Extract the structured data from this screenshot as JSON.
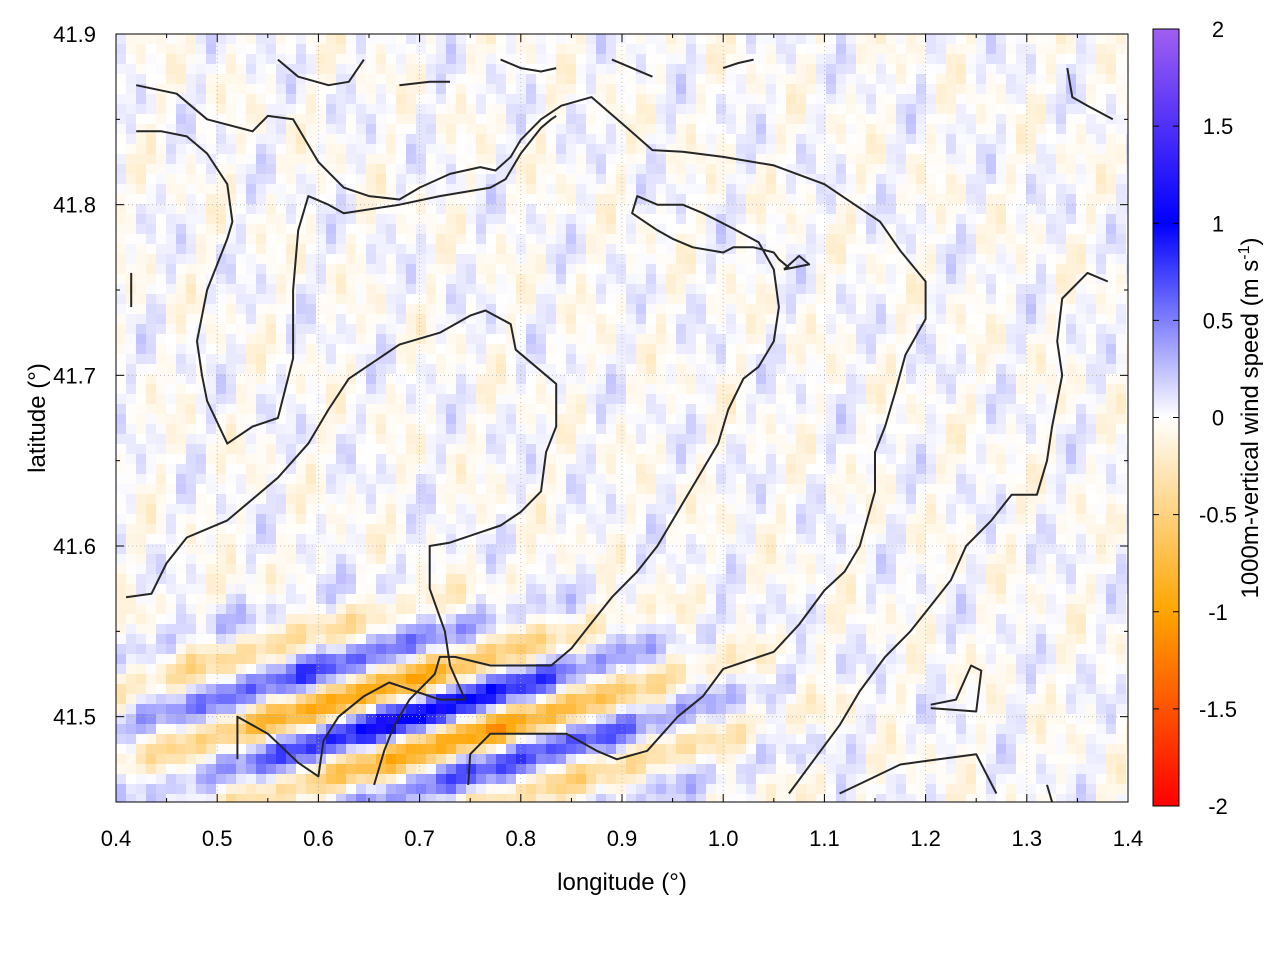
{
  "chart_data": {
    "type": "heatmap",
    "title": "",
    "xlabel": "longitude (°)",
    "ylabel": "latitude (°)",
    "colorbar_label": "1000m-vertical wind speed (m s",
    "colorbar_label_sup": "-1",
    "colorbar_label_end": ")",
    "xlim": [
      0.4,
      1.4
    ],
    "ylim": [
      41.45,
      41.9
    ],
    "x_ticks": [
      0.4,
      0.5,
      0.6,
      0.7,
      0.8,
      0.9,
      1.0,
      1.1,
      1.2,
      1.3,
      1.4
    ],
    "x_tick_labels": [
      "0.4",
      "0.5",
      "0.6",
      "0.7",
      "0.8",
      "0.9",
      "1.0",
      "1.1",
      "1.2",
      "1.3",
      "1.4"
    ],
    "y_ticks": [
      41.5,
      41.6,
      41.7,
      41.8,
      41.9
    ],
    "y_tick_labels": [
      "41.5",
      "41.6",
      "41.7",
      "41.8",
      "41.9"
    ],
    "clim": [
      -2,
      2
    ],
    "cbar_ticks": [
      2,
      1.5,
      1,
      0.5,
      0,
      -0.5,
      -1,
      -1.5,
      -2
    ],
    "cbar_tick_labels": [
      "2",
      "1.5",
      "1",
      "0.5",
      "0",
      "-0.5",
      "-1",
      "-1.5",
      "-2"
    ],
    "grid": true,
    "colormap": [
      {
        "v": -2.0,
        "color": "#ff0000"
      },
      {
        "v": -1.0,
        "color": "#ffa500"
      },
      {
        "v": 0.0,
        "color": "#ffffff"
      },
      {
        "v": 1.0,
        "color": "#0000ff"
      },
      {
        "v": 2.0,
        "color": "#a060f0"
      }
    ],
    "contours": [
      [
        [
          0.42,
          41.87
        ],
        [
          0.46,
          41.865
        ],
        [
          0.49,
          41.85
        ],
        [
          0.535,
          41.843
        ],
        [
          0.55,
          41.852
        ],
        [
          0.575,
          41.85
        ],
        [
          0.6,
          41.825
        ],
        [
          0.625,
          41.81
        ],
        [
          0.65,
          41.805
        ],
        [
          0.68,
          41.803
        ],
        [
          0.7,
          41.81
        ],
        [
          0.73,
          41.818
        ],
        [
          0.76,
          41.822
        ],
        [
          0.775,
          41.82
        ],
        [
          0.79,
          41.828
        ],
        [
          0.8,
          41.838
        ],
        [
          0.82,
          41.85
        ],
        [
          0.84,
          41.858
        ],
        [
          0.87,
          41.863
        ],
        [
          0.905,
          41.845
        ],
        [
          0.93,
          41.832
        ],
        [
          0.96,
          41.831
        ],
        [
          1.0,
          41.828
        ],
        [
          1.05,
          41.823
        ],
        [
          1.1,
          41.812
        ],
        [
          1.13,
          41.8
        ],
        [
          1.155,
          41.79
        ],
        [
          1.175,
          41.773
        ],
        [
          1.2,
          41.755
        ],
        [
          1.2,
          41.733
        ],
        [
          1.18,
          41.712
        ],
        [
          1.17,
          41.69
        ],
        [
          1.16,
          41.67
        ],
        [
          1.15,
          41.655
        ],
        [
          1.15,
          41.632
        ],
        [
          1.135,
          41.6
        ],
        [
          1.12,
          41.585
        ],
        [
          1.1,
          41.574
        ],
        [
          1.075,
          41.554
        ],
        [
          1.05,
          41.538
        ],
        [
          1.0,
          41.528
        ],
        [
          0.98,
          41.512
        ],
        [
          0.955,
          41.5
        ],
        [
          0.925,
          41.48
        ],
        [
          0.895,
          41.475
        ],
        [
          0.875,
          41.48
        ],
        [
          0.845,
          41.49
        ],
        [
          0.81,
          41.49
        ],
        [
          0.77,
          41.49
        ],
        [
          0.75,
          41.478
        ],
        [
          0.748,
          41.46
        ]
      ],
      [
        [
          0.42,
          41.843
        ],
        [
          0.445,
          41.843
        ],
        [
          0.47,
          41.84
        ],
        [
          0.49,
          41.83
        ],
        [
          0.51,
          41.812
        ],
        [
          0.515,
          41.79
        ],
        [
          0.51,
          41.78
        ],
        [
          0.49,
          41.75
        ],
        [
          0.48,
          41.72
        ],
        [
          0.485,
          41.7
        ],
        [
          0.49,
          41.685
        ],
        [
          0.51,
          41.66
        ],
        [
          0.535,
          41.67
        ],
        [
          0.56,
          41.675
        ],
        [
          0.575,
          41.71
        ],
        [
          0.575,
          41.75
        ],
        [
          0.58,
          41.785
        ],
        [
          0.59,
          41.805
        ],
        [
          0.61,
          41.8
        ],
        [
          0.625,
          41.795
        ],
        [
          0.68,
          41.8
        ],
        [
          0.72,
          41.805
        ],
        [
          0.77,
          41.81
        ],
        [
          0.785,
          41.815
        ],
        [
          0.8,
          41.83
        ],
        [
          0.82,
          41.845
        ],
        [
          0.83,
          41.85
        ],
        [
          0.835,
          41.852
        ]
      ],
      [
        [
          0.41,
          41.57
        ],
        [
          0.435,
          41.572
        ],
        [
          0.45,
          41.59
        ],
        [
          0.47,
          41.605
        ],
        [
          0.49,
          41.61
        ],
        [
          0.51,
          41.615
        ],
        [
          0.53,
          41.625
        ],
        [
          0.56,
          41.64
        ],
        [
          0.59,
          41.66
        ],
        [
          0.61,
          41.68
        ],
        [
          0.63,
          41.698
        ],
        [
          0.66,
          41.71
        ],
        [
          0.68,
          41.718
        ],
        [
          0.72,
          41.725
        ],
        [
          0.75,
          41.735
        ],
        [
          0.765,
          41.738
        ],
        [
          0.79,
          41.73
        ],
        [
          0.795,
          41.715
        ],
        [
          0.815,
          41.705
        ],
        [
          0.835,
          41.695
        ],
        [
          0.835,
          41.67
        ],
        [
          0.825,
          41.655
        ],
        [
          0.82,
          41.632
        ],
        [
          0.8,
          41.62
        ],
        [
          0.78,
          41.612
        ],
        [
          0.76,
          41.608
        ],
        [
          0.73,
          41.602
        ],
        [
          0.71,
          41.6
        ],
        [
          0.71,
          41.575
        ],
        [
          0.725,
          41.55
        ],
        [
          0.73,
          41.53
        ],
        [
          0.745,
          41.51
        ],
        [
          0.72,
          41.51
        ],
        [
          0.67,
          41.52
        ],
        [
          0.645,
          41.512
        ],
        [
          0.62,
          41.5
        ],
        [
          0.605,
          41.486
        ],
        [
          0.6,
          41.465
        ],
        [
          0.58,
          41.473
        ],
        [
          0.55,
          41.49
        ],
        [
          0.52,
          41.5
        ],
        [
          0.52,
          41.475
        ]
      ],
      [
        [
          0.655,
          41.46
        ],
        [
          0.665,
          41.48
        ],
        [
          0.675,
          41.495
        ],
        [
          0.69,
          41.51
        ],
        [
          0.715,
          41.525
        ],
        [
          0.72,
          41.535
        ],
        [
          0.735,
          41.535
        ],
        [
          0.77,
          41.53
        ],
        [
          0.8,
          41.53
        ],
        [
          0.83,
          41.53
        ],
        [
          0.85,
          41.54
        ],
        [
          0.87,
          41.555
        ],
        [
          0.89,
          41.57
        ],
        [
          0.915,
          41.585
        ],
        [
          0.935,
          41.6
        ],
        [
          0.96,
          41.625
        ],
        [
          0.975,
          41.64
        ],
        [
          0.995,
          41.66
        ],
        [
          1.005,
          41.68
        ],
        [
          1.02,
          41.698
        ],
        [
          1.035,
          41.705
        ],
        [
          1.05,
          41.72
        ],
        [
          1.055,
          41.74
        ],
        [
          1.05,
          41.762
        ],
        [
          1.035,
          41.778
        ],
        [
          1.01,
          41.786
        ],
        [
          0.98,
          41.795
        ],
        [
          0.96,
          41.8
        ],
        [
          0.935,
          41.8
        ],
        [
          0.915,
          41.805
        ],
        [
          0.91,
          41.795
        ],
        [
          0.935,
          41.785
        ],
        [
          0.95,
          41.78
        ],
        [
          0.97,
          41.775
        ],
        [
          1.0,
          41.772
        ],
        [
          1.01,
          41.775
        ],
        [
          1.03,
          41.775
        ],
        [
          1.05,
          41.772
        ],
        [
          1.055,
          41.768
        ],
        [
          1.065,
          41.763
        ]
      ],
      [
        [
          0.68,
          41.87
        ],
        [
          0.71,
          41.872
        ],
        [
          0.73,
          41.872
        ]
      ],
      [
        [
          0.56,
          41.885
        ],
        [
          0.58,
          41.875
        ],
        [
          0.61,
          41.87
        ],
        [
          0.63,
          41.872
        ],
        [
          0.645,
          41.885
        ]
      ],
      [
        [
          0.78,
          41.885
        ],
        [
          0.8,
          41.88
        ],
        [
          0.82,
          41.878
        ],
        [
          0.835,
          41.88
        ]
      ],
      [
        [
          0.89,
          41.885
        ],
        [
          0.91,
          41.88
        ],
        [
          0.93,
          41.875
        ]
      ],
      [
        [
          1.0,
          41.88
        ],
        [
          1.015,
          41.883
        ],
        [
          1.03,
          41.885
        ]
      ],
      [
        [
          1.34,
          41.88
        ],
        [
          1.345,
          41.863
        ],
        [
          1.36,
          41.858
        ],
        [
          1.385,
          41.85
        ]
      ],
      [
        [
          1.32,
          41.46
        ],
        [
          1.325,
          41.45
        ]
      ],
      [
        [
          1.115,
          41.455
        ],
        [
          1.14,
          41.462
        ],
        [
          1.175,
          41.472
        ],
        [
          1.2,
          41.474
        ],
        [
          1.25,
          41.478
        ],
        [
          1.27,
          41.455
        ]
      ],
      [
        [
          1.205,
          41.505
        ],
        [
          1.25,
          41.503
        ],
        [
          1.255,
          41.527
        ],
        [
          1.245,
          41.53
        ],
        [
          1.23,
          41.51
        ],
        [
          1.205,
          41.507
        ]
      ],
      [
        [
          1.06,
          41.762
        ],
        [
          1.075,
          41.77
        ],
        [
          1.085,
          41.765
        ],
        [
          1.06,
          41.762
        ]
      ],
      [
        [
          0.415,
          41.76
        ],
        [
          0.415,
          41.74
        ]
      ],
      [
        [
          1.38,
          41.755
        ],
        [
          1.36,
          41.76
        ],
        [
          1.335,
          41.745
        ],
        [
          1.33,
          41.72
        ],
        [
          1.335,
          41.7
        ],
        [
          1.325,
          41.67
        ],
        [
          1.32,
          41.65
        ],
        [
          1.31,
          41.63
        ],
        [
          1.285,
          41.63
        ],
        [
          1.265,
          41.615
        ],
        [
          1.24,
          41.6
        ],
        [
          1.225,
          41.58
        ],
        [
          1.205,
          41.565
        ],
        [
          1.185,
          41.55
        ],
        [
          1.16,
          41.535
        ],
        [
          1.135,
          41.515
        ],
        [
          1.115,
          41.495
        ],
        [
          1.09,
          41.475
        ],
        [
          1.065,
          41.455
        ]
      ]
    ]
  }
}
